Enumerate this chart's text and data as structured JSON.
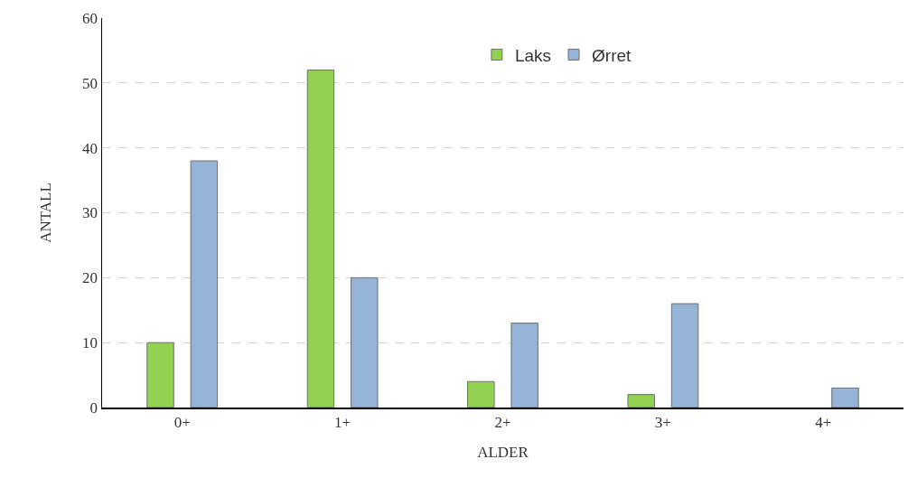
{
  "chart_data": {
    "type": "bar",
    "xlabel": "ALDER",
    "ylabel": "ANTALL",
    "categories": [
      "0+",
      "1+",
      "2+",
      "3+",
      "4+"
    ],
    "series": [
      {
        "name": "Laks",
        "color": "#92d050",
        "values": [
          10,
          52,
          4,
          2,
          null
        ]
      },
      {
        "name": "Ørret",
        "color": "#95b3d7",
        "values": [
          38,
          20,
          13,
          16,
          3
        ]
      }
    ],
    "ylim": [
      0,
      60
    ],
    "yticks": [
      0,
      10,
      20,
      30,
      40,
      50,
      60
    ],
    "grid": "y",
    "legend": "top"
  }
}
